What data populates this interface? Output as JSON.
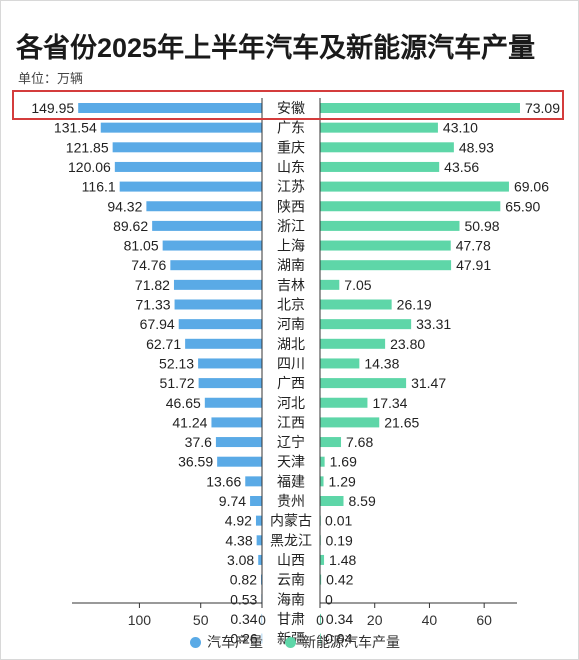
{
  "chart_data": {
    "type": "bar",
    "title": "各省份2025年上半年汽车及新能源汽车产量",
    "unit_label": "单位：万辆",
    "categories": [
      "安徽",
      "广东",
      "重庆",
      "山东",
      "江苏",
      "陕西",
      "浙江",
      "上海",
      "湖南",
      "吉林",
      "北京",
      "河南",
      "湖北",
      "四川",
      "广西",
      "河北",
      "江西",
      "辽宁",
      "天津",
      "福建",
      "贵州",
      "内蒙古",
      "黑龙江",
      "山西",
      "云南",
      "海南",
      "甘肃",
      "新疆"
    ],
    "series": [
      {
        "name": "汽车产量",
        "color": "#5aaae6",
        "labels": [
          "149.95",
          "131.54",
          "121.85",
          "120.06",
          "116.1",
          "94.32",
          "89.62",
          "81.05",
          "74.76",
          "71.82",
          "71.33",
          "67.94",
          "62.71",
          "52.13",
          "51.72",
          "46.65",
          "41.24",
          "37.6",
          "36.59",
          "13.66",
          "9.74",
          "4.92",
          "4.38",
          "3.08",
          "0.82",
          "0.53",
          "0.34",
          "0.26"
        ],
        "values": [
          149.95,
          131.54,
          121.85,
          120.06,
          116.1,
          94.32,
          89.62,
          81.05,
          74.76,
          71.82,
          71.33,
          67.94,
          62.71,
          52.13,
          51.72,
          46.65,
          41.24,
          37.6,
          36.59,
          13.66,
          9.74,
          4.92,
          4.38,
          3.08,
          0.82,
          0.53,
          0.34,
          0.26
        ]
      },
      {
        "name": "新能源汽车产量",
        "color": "#5ed6a8",
        "labels": [
          "73.09",
          "43.10",
          "48.93",
          "43.56",
          "69.06",
          "65.90",
          "50.98",
          "47.78",
          "47.91",
          "7.05",
          "26.19",
          "33.31",
          "23.80",
          "14.38",
          "31.47",
          "17.34",
          "21.65",
          "7.68",
          "1.69",
          "1.29",
          "8.59",
          "0.01",
          "0.19",
          "1.48",
          "0.42",
          "0",
          "0.34",
          "0.04"
        ],
        "values": [
          73.09,
          43.1,
          48.93,
          43.56,
          69.06,
          65.9,
          50.98,
          47.78,
          47.91,
          7.05,
          26.19,
          33.31,
          23.8,
          14.38,
          31.47,
          17.34,
          21.65,
          7.68,
          1.69,
          1.29,
          8.59,
          0.01,
          0.19,
          1.48,
          0.42,
          0,
          0.34,
          0.04
        ]
      }
    ],
    "left_axis": {
      "ticks": [
        "100",
        "50",
        "0"
      ],
      "tick_values": [
        100,
        50,
        0
      ],
      "max": 155
    },
    "right_axis": {
      "ticks": [
        "0",
        "20",
        "40",
        "60"
      ],
      "tick_values": [
        0,
        20,
        40,
        60
      ],
      "max": 72
    },
    "highlight_category": "安徽",
    "highlight_color": "#d43c3c",
    "legend_position": "bottom"
  }
}
